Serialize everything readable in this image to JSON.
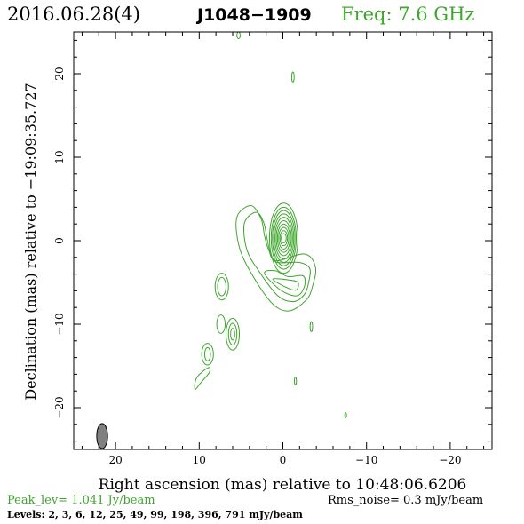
{
  "header": {
    "date": "2016.06.28(4)",
    "source": "J1048−1909",
    "freq": "Freq: 7.6 GHz"
  },
  "colors": {
    "contour": "#3fa52e",
    "beam_fill": "#808080",
    "axis": "#000000"
  },
  "chart_data": {
    "type": "contour",
    "xlabel": "Right ascension (mas) relative to 10:48:06.6206",
    "ylabel": "Declination (mas) relative to −19:09:35.727",
    "xlim": [
      25,
      -25
    ],
    "ylim": [
      -25,
      25
    ],
    "xticks": [
      20,
      10,
      0,
      -10,
      -20
    ],
    "xtick_labels": [
      "20",
      "10",
      "0",
      "−10",
      "−20"
    ],
    "yticks": [
      20,
      10,
      0,
      -10,
      -20
    ],
    "ytick_labels": [
      "20",
      "10",
      "0",
      "−10",
      "−20"
    ],
    "core": {
      "x": -0.1,
      "y": 0.3,
      "nested_ellipses": [
        {
          "rx": 1.7,
          "ry": 4.2
        },
        {
          "rx": 1.5,
          "ry": 3.7
        },
        {
          "rx": 1.35,
          "ry": 3.3
        },
        {
          "rx": 1.2,
          "ry": 2.9
        },
        {
          "rx": 1.05,
          "ry": 2.5
        },
        {
          "rx": 0.9,
          "ry": 2.1
        },
        {
          "rx": 0.75,
          "ry": 1.7
        },
        {
          "rx": 0.6,
          "ry": 1.3
        },
        {
          "rx": 0.45,
          "ry": 0.9
        },
        {
          "rx": 0.3,
          "ry": 0.55
        }
      ]
    },
    "jet_contours": [
      [
        [
          3.8,
          4.2
        ],
        [
          5.5,
          2.8
        ],
        [
          5.2,
          -0.8
        ],
        [
          3.6,
          -4.2
        ],
        [
          1.2,
          -7.6
        ],
        [
          -0.8,
          -8.4
        ],
        [
          -2.8,
          -7.1
        ],
        [
          -3.5,
          -5.6
        ],
        [
          -3.9,
          -3.2
        ],
        [
          -2.6,
          -1.6
        ],
        [
          0.8,
          -2.4
        ],
        [
          1.7,
          -1.1
        ],
        [
          2.2,
          0.6
        ],
        [
          2.6,
          2.6
        ]
      ],
      [
        [
          3.2,
          3.4
        ],
        [
          4.6,
          2.1
        ],
        [
          4.3,
          -1.1
        ],
        [
          2.9,
          -3.6
        ],
        [
          0.6,
          -6.6
        ],
        [
          -1.3,
          -7.3
        ],
        [
          -2.6,
          -6.4
        ],
        [
          -3.1,
          -4.9
        ],
        [
          -3.2,
          -3.3
        ],
        [
          -1.9,
          -2.6
        ],
        [
          0.7,
          -2.6
        ],
        [
          1.5,
          -1.4
        ],
        [
          1.9,
          0.3
        ],
        [
          2.3,
          2.2
        ]
      ],
      [
        [
          2.2,
          -3.9
        ],
        [
          0.3,
          -5.9
        ],
        [
          -1.7,
          -6.6
        ],
        [
          -2.6,
          -5.4
        ],
        [
          -2.4,
          -4.2
        ],
        [
          -0.6,
          -4.3
        ],
        [
          0.9,
          -3.6
        ]
      ],
      [
        [
          1.2,
          -4.6
        ],
        [
          -0.4,
          -5.6
        ],
        [
          -1.6,
          -5.9
        ],
        [
          -1.8,
          -5.0
        ],
        [
          -0.7,
          -4.7
        ]
      ]
    ],
    "components": [
      {
        "x": 7.3,
        "y": -5.5,
        "rings": [
          [
            0.8,
            1.6
          ],
          [
            0.5,
            1.1
          ]
        ]
      },
      {
        "x": 7.4,
        "y": -10.0,
        "rings": [
          [
            0.5,
            1.1
          ]
        ]
      },
      {
        "x": 6.0,
        "y": -11.2,
        "rings": [
          [
            0.8,
            1.9
          ],
          [
            0.5,
            1.3
          ],
          [
            0.25,
            0.7
          ]
        ]
      },
      {
        "x": 9.0,
        "y": -13.6,
        "rings": [
          [
            0.7,
            1.3
          ],
          [
            0.35,
            0.8
          ]
        ]
      },
      {
        "x": 5.3,
        "y": 24.6,
        "rings": [
          [
            0.2,
            0.4
          ]
        ]
      },
      {
        "x": -1.2,
        "y": 19.6,
        "rings": [
          [
            0.15,
            0.6
          ]
        ]
      },
      {
        "x": -3.4,
        "y": -10.3,
        "rings": [
          [
            0.15,
            0.6
          ]
        ]
      },
      {
        "x": -1.5,
        "y": -16.8,
        "rings": [
          [
            0.12,
            0.5
          ]
        ]
      },
      {
        "x": -7.5,
        "y": -20.9,
        "rings": [
          [
            0.1,
            0.3
          ]
        ]
      }
    ],
    "filament": [
      [
        8.9,
        -15.2
      ],
      [
        10.3,
        -16.4
      ],
      [
        10.5,
        -17.8
      ],
      [
        9.8,
        -17.0
      ],
      [
        8.8,
        -15.8
      ]
    ],
    "beam": {
      "x": 21.6,
      "y": -23.4,
      "rx": 0.65,
      "ry": 1.5
    }
  },
  "footer": {
    "peak": "Peak_lev=  1.041 Jy/beam",
    "rms": "Rms_noise=  0.3 mJy/beam",
    "levels": "Levels:   2,   3,   6,  12,  25,  49,  99, 198, 396, 791 mJy/beam"
  }
}
